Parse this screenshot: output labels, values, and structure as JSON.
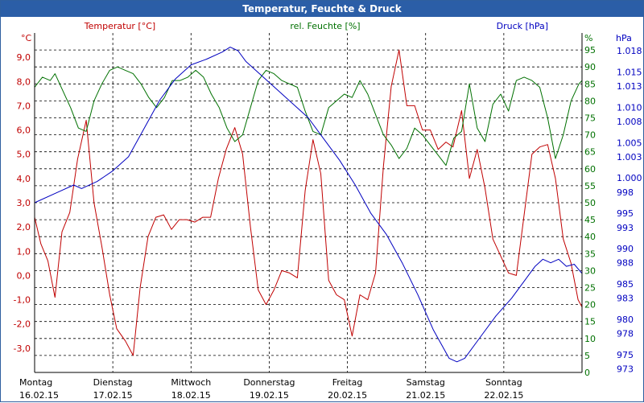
{
  "window": {
    "title": "Temperatur, Feuchte & Druck"
  },
  "chart_data": {
    "type": "line",
    "title": "Temperatur, Feuchte & Druck",
    "grid": true,
    "colors": {
      "temperature": "#c00000",
      "humidity": "#007000",
      "pressure": "#0000c0",
      "grid": "#000000",
      "axis": "#000000"
    },
    "x_range": [
      0,
      7
    ],
    "x_days": [
      {
        "day": "Montag",
        "date": "16.02.15"
      },
      {
        "day": "Dienstag",
        "date": "17.02.15"
      },
      {
        "day": "Mittwoch",
        "date": "18.02.15"
      },
      {
        "day": "Donnerstag",
        "date": "19.02.15"
      },
      {
        "day": "Freitag",
        "date": "20.02.15"
      },
      {
        "day": "Samstag",
        "date": "21.02.15"
      },
      {
        "day": "Sonntag",
        "date": "22.02.15"
      }
    ],
    "axes": {
      "temperature": {
        "header": "Temperatur [°C]",
        "unit": "°C",
        "range": [
          -4,
          10
        ],
        "ticks": [
          9,
          8,
          7,
          6,
          5,
          4,
          3,
          2,
          1,
          0,
          -1,
          -2,
          -3
        ],
        "tick_labels": [
          "9,0",
          "8,0",
          "7,0",
          "6,0",
          "5,0",
          "4,0",
          "3,0",
          "2,0",
          "1,0",
          "0,0",
          "-1,0",
          "-2,0",
          "-3,0"
        ]
      },
      "humidity": {
        "header": "rel. Feuchte [%]",
        "unit": "%",
        "range": [
          0,
          100
        ],
        "ticks": [
          95,
          90,
          85,
          80,
          75,
          70,
          65,
          60,
          55,
          50,
          45,
          40,
          35,
          30,
          25,
          20,
          15,
          10,
          5,
          0
        ],
        "tick_labels": [
          "95",
          "90",
          "85",
          "80",
          "75",
          "70",
          "65",
          "60",
          "55",
          "50",
          "45",
          "40",
          "35",
          "30",
          "25",
          "20",
          "15",
          "10",
          "5",
          "0"
        ]
      },
      "pressure": {
        "header": "Druck [hPa]",
        "unit": "hPa",
        "range": [
          972.5,
          1020.5
        ],
        "ticks": [
          1018,
          1015,
          1013,
          1010,
          1008,
          1005,
          1003,
          1000,
          998,
          995,
          993,
          990,
          988,
          985,
          983,
          980,
          978,
          975,
          973
        ],
        "tick_labels": [
          "1.018",
          "1.015",
          "1.013",
          "1.010",
          "1.008",
          "1.005",
          "1.003",
          "1.000",
          "998",
          "995",
          "993",
          "990",
          "988",
          "985",
          "983",
          "980",
          "978",
          "975",
          "973"
        ]
      }
    },
    "series": [
      {
        "name": "Temperatur [°C]",
        "axis": "temperature",
        "points": [
          [
            0.0,
            2.4
          ],
          [
            0.08,
            1.3
          ],
          [
            0.17,
            0.6
          ],
          [
            0.26,
            -0.9
          ],
          [
            0.35,
            1.8
          ],
          [
            0.45,
            2.6
          ],
          [
            0.55,
            4.8
          ],
          [
            0.66,
            6.4
          ],
          [
            0.76,
            3.0
          ],
          [
            0.86,
            1.2
          ],
          [
            0.96,
            -0.8
          ],
          [
            1.05,
            -2.2
          ],
          [
            1.16,
            -2.7
          ],
          [
            1.26,
            -3.3
          ],
          [
            1.35,
            -0.5
          ],
          [
            1.45,
            1.6
          ],
          [
            1.55,
            2.4
          ],
          [
            1.65,
            2.5
          ],
          [
            1.75,
            1.9
          ],
          [
            1.85,
            2.3
          ],
          [
            1.95,
            2.3
          ],
          [
            2.05,
            2.2
          ],
          [
            2.15,
            2.4
          ],
          [
            2.25,
            2.4
          ],
          [
            2.35,
            4.0
          ],
          [
            2.45,
            5.2
          ],
          [
            2.56,
            6.1
          ],
          [
            2.66,
            5.0
          ],
          [
            2.76,
            2.0
          ],
          [
            2.86,
            -0.6
          ],
          [
            2.96,
            -1.2
          ],
          [
            3.06,
            -0.6
          ],
          [
            3.16,
            0.2
          ],
          [
            3.26,
            0.1
          ],
          [
            3.36,
            -0.1
          ],
          [
            3.46,
            3.5
          ],
          [
            3.56,
            5.6
          ],
          [
            3.66,
            4.2
          ],
          [
            3.76,
            -0.2
          ],
          [
            3.86,
            -0.8
          ],
          [
            3.96,
            -1.0
          ],
          [
            4.06,
            -2.5
          ],
          [
            4.16,
            -0.8
          ],
          [
            4.26,
            -1.0
          ],
          [
            4.36,
            0.1
          ],
          [
            4.46,
            4.5
          ],
          [
            4.56,
            7.8
          ],
          [
            4.66,
            9.3
          ],
          [
            4.76,
            7.0
          ],
          [
            4.86,
            7.0
          ],
          [
            4.96,
            6.0
          ],
          [
            5.06,
            6.0
          ],
          [
            5.16,
            5.2
          ],
          [
            5.26,
            5.5
          ],
          [
            5.35,
            5.3
          ],
          [
            5.46,
            6.8
          ],
          [
            5.56,
            4.0
          ],
          [
            5.66,
            5.2
          ],
          [
            5.76,
            3.6
          ],
          [
            5.86,
            1.5
          ],
          [
            5.96,
            0.8
          ],
          [
            6.06,
            0.1
          ],
          [
            6.16,
            0.0
          ],
          [
            6.26,
            2.5
          ],
          [
            6.36,
            5.0
          ],
          [
            6.46,
            5.3
          ],
          [
            6.56,
            5.4
          ],
          [
            6.66,
            4.0
          ],
          [
            6.76,
            1.5
          ],
          [
            6.86,
            0.5
          ],
          [
            6.95,
            -1.0
          ],
          [
            7.0,
            -1.3
          ]
        ]
      },
      {
        "name": "rel. Feuchte [%]",
        "axis": "humidity",
        "points": [
          [
            0.0,
            84
          ],
          [
            0.1,
            87
          ],
          [
            0.2,
            86
          ],
          [
            0.26,
            88
          ],
          [
            0.36,
            83
          ],
          [
            0.46,
            78
          ],
          [
            0.56,
            72
          ],
          [
            0.66,
            71
          ],
          [
            0.76,
            80
          ],
          [
            0.86,
            85
          ],
          [
            0.96,
            89
          ],
          [
            1.06,
            90
          ],
          [
            1.16,
            89
          ],
          [
            1.26,
            88
          ],
          [
            1.36,
            85
          ],
          [
            1.46,
            81
          ],
          [
            1.56,
            78
          ],
          [
            1.66,
            81
          ],
          [
            1.76,
            86
          ],
          [
            1.86,
            86
          ],
          [
            1.96,
            87
          ],
          [
            2.06,
            89
          ],
          [
            2.16,
            87
          ],
          [
            2.26,
            82
          ],
          [
            2.36,
            78
          ],
          [
            2.46,
            72
          ],
          [
            2.56,
            68
          ],
          [
            2.66,
            70
          ],
          [
            2.76,
            78
          ],
          [
            2.86,
            86
          ],
          [
            2.96,
            89
          ],
          [
            3.06,
            88
          ],
          [
            3.16,
            86
          ],
          [
            3.26,
            85
          ],
          [
            3.36,
            84
          ],
          [
            3.46,
            77
          ],
          [
            3.56,
            71
          ],
          [
            3.66,
            70
          ],
          [
            3.76,
            78
          ],
          [
            3.86,
            80
          ],
          [
            3.96,
            82
          ],
          [
            4.06,
            81
          ],
          [
            4.16,
            86
          ],
          [
            4.26,
            82
          ],
          [
            4.36,
            76
          ],
          [
            4.46,
            70
          ],
          [
            4.56,
            67
          ],
          [
            4.66,
            63
          ],
          [
            4.76,
            66
          ],
          [
            4.86,
            72
          ],
          [
            4.96,
            70
          ],
          [
            5.06,
            67
          ],
          [
            5.16,
            64
          ],
          [
            5.26,
            61
          ],
          [
            5.36,
            69
          ],
          [
            5.46,
            71
          ],
          [
            5.56,
            85
          ],
          [
            5.66,
            72
          ],
          [
            5.76,
            68
          ],
          [
            5.86,
            79
          ],
          [
            5.96,
            82
          ],
          [
            6.06,
            77
          ],
          [
            6.16,
            86
          ],
          [
            6.26,
            87
          ],
          [
            6.36,
            86
          ],
          [
            6.46,
            84
          ],
          [
            6.56,
            75
          ],
          [
            6.66,
            63
          ],
          [
            6.76,
            70
          ],
          [
            6.86,
            80
          ],
          [
            6.96,
            85
          ],
          [
            7.0,
            86
          ]
        ]
      },
      {
        "name": "Druck [hPa]",
        "axis": "pressure",
        "points": [
          [
            0.0,
            996.5
          ],
          [
            0.3,
            998.0
          ],
          [
            0.5,
            999.0
          ],
          [
            0.6,
            998.5
          ],
          [
            0.8,
            999.5
          ],
          [
            1.0,
            1001.0
          ],
          [
            1.2,
            1003.0
          ],
          [
            1.4,
            1007.0
          ],
          [
            1.6,
            1011.0
          ],
          [
            1.8,
            1014.0
          ],
          [
            2.0,
            1016.0
          ],
          [
            2.2,
            1016.8
          ],
          [
            2.4,
            1017.8
          ],
          [
            2.5,
            1018.5
          ],
          [
            2.6,
            1018.0
          ],
          [
            2.7,
            1016.5
          ],
          [
            2.9,
            1014.5
          ],
          [
            3.1,
            1012.5
          ],
          [
            3.3,
            1010.5
          ],
          [
            3.5,
            1008.5
          ],
          [
            3.7,
            1005.5
          ],
          [
            3.9,
            1002.5
          ],
          [
            4.1,
            999.0
          ],
          [
            4.3,
            995.0
          ],
          [
            4.5,
            992.0
          ],
          [
            4.7,
            988.0
          ],
          [
            4.9,
            983.5
          ],
          [
            5.1,
            978.5
          ],
          [
            5.3,
            974.5
          ],
          [
            5.4,
            974.0
          ],
          [
            5.5,
            974.5
          ],
          [
            5.7,
            977.5
          ],
          [
            5.9,
            980.5
          ],
          [
            6.1,
            983.0
          ],
          [
            6.3,
            986.0
          ],
          [
            6.4,
            987.5
          ],
          [
            6.5,
            988.5
          ],
          [
            6.6,
            988.0
          ],
          [
            6.7,
            988.5
          ],
          [
            6.8,
            987.5
          ],
          [
            6.9,
            987.8
          ],
          [
            7.0,
            986.5
          ]
        ]
      }
    ]
  }
}
